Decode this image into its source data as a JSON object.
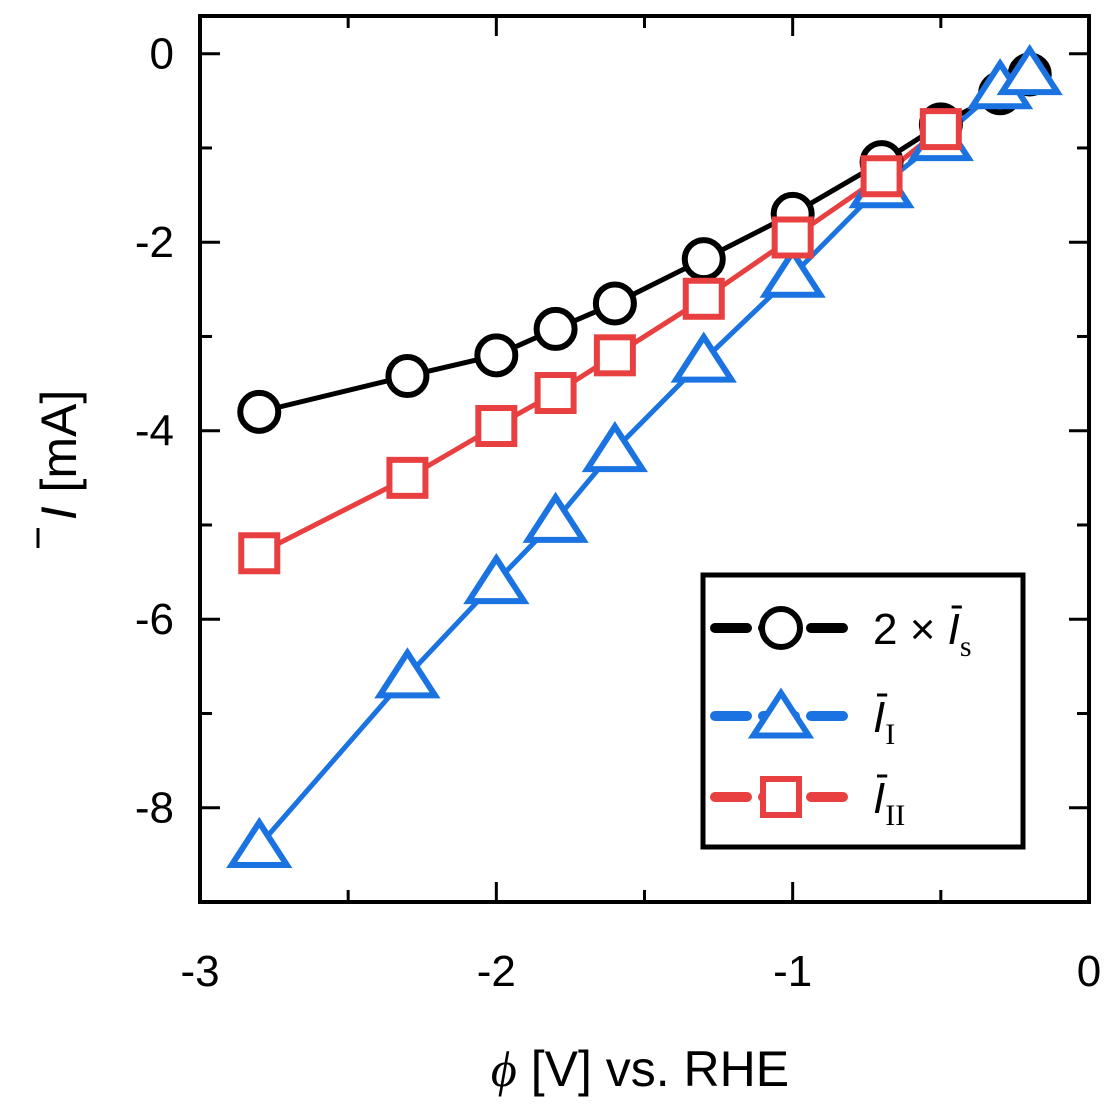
{
  "chart_data": {
    "type": "line",
    "xlabel": {
      "symbol": "ϕ",
      "rest": " [V] vs. RHE"
    },
    "ylabel": {
      "symbol": "I",
      "rest": " [mA]"
    },
    "xlim": [
      -3,
      0
    ],
    "ylim": [
      -9,
      0.4
    ],
    "xticks": [
      -3,
      -2,
      -1,
      0
    ],
    "xtick_labels": [
      "-3",
      "-2",
      "-1",
      "0"
    ],
    "yticks": [
      0,
      -2,
      -4,
      -6,
      -8
    ],
    "ytick_labels": [
      "0",
      "-2",
      "-4",
      "-6",
      "-8"
    ],
    "grid": false,
    "legend_position": "bottom-right",
    "series": [
      {
        "name": "2 × Ī_s",
        "legend_main": "2 × ",
        "legend_symbol": "I",
        "legend_sub": "s",
        "marker": "circle",
        "color": "#000000",
        "x": [
          -2.8,
          -2.3,
          -2.0,
          -1.8,
          -1.6,
          -1.3,
          -1.0,
          -0.7,
          -0.5,
          -0.3,
          -0.2
        ],
        "y": [
          -3.8,
          -3.42,
          -3.2,
          -2.92,
          -2.65,
          -2.18,
          -1.7,
          -1.15,
          -0.75,
          -0.42,
          -0.22
        ]
      },
      {
        "name": "Ī_I",
        "legend_main": "",
        "legend_symbol": "I",
        "legend_sub": "I",
        "marker": "triangle",
        "color": "#1a73e0",
        "x": [
          -2.8,
          -2.3,
          -2.0,
          -1.8,
          -1.6,
          -1.3,
          -1.0,
          -0.7,
          -0.5,
          -0.3,
          -0.2
        ],
        "y": [
          -8.4,
          -6.6,
          -5.6,
          -4.95,
          -4.2,
          -3.25,
          -2.35,
          -1.4,
          -0.9,
          -0.35,
          -0.2
        ]
      },
      {
        "name": "Ī_II",
        "legend_main": "",
        "legend_symbol": "I",
        "legend_sub": "II",
        "marker": "square",
        "color": "#e84040",
        "x": [
          -2.8,
          -2.3,
          -2.0,
          -1.8,
          -1.6,
          -1.3,
          -1.0,
          -0.7,
          -0.5
        ],
        "y": [
          -5.3,
          -4.5,
          -3.95,
          -3.6,
          -3.2,
          -2.6,
          -1.95,
          -1.3,
          -0.8
        ]
      }
    ]
  }
}
